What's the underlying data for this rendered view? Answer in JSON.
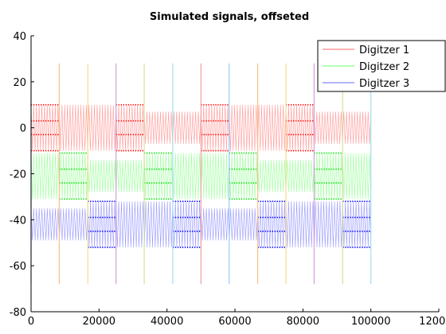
{
  "chart_data": {
    "type": "line",
    "title": "Simulated signals, offseted",
    "xlabel": "",
    "ylabel": "",
    "xlim": [
      0,
      120000
    ],
    "ylim": [
      -80,
      40
    ],
    "x_ticks": [
      0,
      20000,
      40000,
      60000,
      80000,
      100000,
      120000
    ],
    "y_ticks": [
      -80,
      -60,
      -40,
      -20,
      0,
      20,
      40
    ],
    "x_tick_labels": [
      "0",
      "20000",
      "40000",
      "60000",
      "80000",
      "100000",
      "120000"
    ],
    "y_tick_labels": [
      "-80",
      "-60",
      "-40",
      "-20",
      "0",
      "20",
      "40"
    ],
    "grid": false,
    "legend_position": "top-right",
    "series": [
      {
        "name": "Digitzer 1",
        "color": "#ff9a9a",
        "marker_color": "#ff0000",
        "x_range": [
          0,
          100000
        ],
        "envelope": [
          {
            "x": [
              0,
              8300
            ],
            "y": [
              -10,
              10
            ]
          },
          {
            "x": [
              8300,
              25000
            ],
            "y": [
              -10,
              10
            ]
          },
          {
            "x": [
              25000,
              33300
            ],
            "y": [
              -10,
              10
            ]
          },
          {
            "x": [
              33300,
              50000
            ],
            "y": [
              -7,
              7
            ]
          },
          {
            "x": [
              50000,
              58300
            ],
            "y": [
              -10,
              10
            ]
          },
          {
            "x": [
              58300,
              75000
            ],
            "y": [
              -10,
              10
            ]
          },
          {
            "x": [
              75000,
              83300
            ],
            "y": [
              -10,
              10
            ]
          },
          {
            "x": [
              83300,
              100000
            ],
            "y": [
              -7,
              7
            ]
          }
        ],
        "marker_segments": [
          {
            "x": [
              0,
              8300
            ],
            "levels": [
              10,
              3,
              -3,
              -10
            ]
          },
          {
            "x": [
              25000,
              33300
            ],
            "levels": [
              10,
              3,
              -3,
              -10
            ]
          },
          {
            "x": [
              50000,
              58300
            ],
            "levels": [
              10,
              3,
              -3,
              -10
            ]
          },
          {
            "x": [
              75000,
              83300
            ],
            "levels": [
              10,
              3,
              -3,
              -10
            ]
          }
        ]
      },
      {
        "name": "Digitzer 2",
        "color": "#9aff9a",
        "marker_color": "#00dd00",
        "x_range": [
          0,
          100000
        ],
        "envelope": [
          {
            "x": [
              0,
              16700
            ],
            "y": [
              -31,
              -11
            ]
          },
          {
            "x": [
              16700,
              33300
            ],
            "y": [
              -28,
              -14
            ]
          },
          {
            "x": [
              33300,
              41700
            ],
            "y": [
              -31,
              -11
            ]
          },
          {
            "x": [
              41700,
              58300
            ],
            "y": [
              -31,
              -11
            ]
          },
          {
            "x": [
              58300,
              66700
            ],
            "y": [
              -31,
              -11
            ]
          },
          {
            "x": [
              66700,
              83300
            ],
            "y": [
              -28,
              -14
            ]
          },
          {
            "x": [
              83300,
              91700
            ],
            "y": [
              -31,
              -11
            ]
          },
          {
            "x": [
              91700,
              100000
            ],
            "y": [
              -31,
              -11
            ]
          }
        ],
        "marker_segments": [
          {
            "x": [
              8300,
              16700
            ],
            "levels": [
              -11,
              -18,
              -24,
              -31
            ]
          },
          {
            "x": [
              33300,
              41700
            ],
            "levels": [
              -11,
              -18,
              -24,
              -31
            ]
          },
          {
            "x": [
              58300,
              66700
            ],
            "levels": [
              -11,
              -18,
              -24,
              -31
            ]
          },
          {
            "x": [
              83300,
              91700
            ],
            "levels": [
              -11,
              -18,
              -24,
              -31
            ]
          }
        ]
      },
      {
        "name": "Digitzer 3",
        "color": "#9a9aff",
        "marker_color": "#0000ff",
        "x_range": [
          0,
          100000
        ],
        "envelope": [
          {
            "x": [
              0,
              16700
            ],
            "y": [
              -49,
              -35
            ]
          },
          {
            "x": [
              16700,
              25000
            ],
            "y": [
              -52,
              -32
            ]
          },
          {
            "x": [
              25000,
              41700
            ],
            "y": [
              -52,
              -32
            ]
          },
          {
            "x": [
              41700,
              50000
            ],
            "y": [
              -52,
              -32
            ]
          },
          {
            "x": [
              50000,
              66700
            ],
            "y": [
              -49,
              -35
            ]
          },
          {
            "x": [
              66700,
              75000
            ],
            "y": [
              -52,
              -32
            ]
          },
          {
            "x": [
              75000,
              91700
            ],
            "y": [
              -52,
              -32
            ]
          },
          {
            "x": [
              91700,
              100000
            ],
            "y": [
              -52,
              -32
            ]
          }
        ],
        "marker_segments": [
          {
            "x": [
              16700,
              25000
            ],
            "levels": [
              -32,
              -39,
              -45,
              -52
            ]
          },
          {
            "x": [
              41700,
              50000
            ],
            "levels": [
              -32,
              -39,
              -45,
              -52
            ]
          },
          {
            "x": [
              66700,
              75000
            ],
            "levels": [
              -32,
              -39,
              -45,
              -52
            ]
          },
          {
            "x": [
              91700,
              100000
            ],
            "levels": [
              -32,
              -39,
              -45,
              -52
            ]
          }
        ]
      }
    ],
    "vertical_markers": [
      {
        "x": 0,
        "color": "#a0c8ff",
        "y": [
          -68,
          28
        ]
      },
      {
        "x": 8300,
        "color": "#f5c08a",
        "y": [
          -68,
          28
        ]
      },
      {
        "x": 16700,
        "color": "#f5dd8a",
        "y": [
          -68,
          28
        ]
      },
      {
        "x": 25000,
        "color": "#d4a0d8",
        "y": [
          -68,
          28
        ]
      },
      {
        "x": 33300,
        "color": "#d8e0a0",
        "y": [
          -68,
          28
        ]
      },
      {
        "x": 41700,
        "color": "#a0e0f0",
        "y": [
          -68,
          28
        ]
      },
      {
        "x": 50000,
        "color": "#f0a0a0",
        "y": [
          -68,
          28
        ]
      },
      {
        "x": 58300,
        "color": "#a0c8ff",
        "y": [
          -68,
          28
        ]
      },
      {
        "x": 66700,
        "color": "#f5c08a",
        "y": [
          -68,
          28
        ]
      },
      {
        "x": 75000,
        "color": "#f5dd8a",
        "y": [
          -68,
          28
        ]
      },
      {
        "x": 83300,
        "color": "#d4a0d8",
        "y": [
          -68,
          28
        ]
      },
      {
        "x": 91700,
        "color": "#d8e0a0",
        "y": [
          -68,
          28
        ]
      },
      {
        "x": 100000,
        "color": "#a0e0f0",
        "y": [
          -68,
          28
        ]
      }
    ]
  }
}
